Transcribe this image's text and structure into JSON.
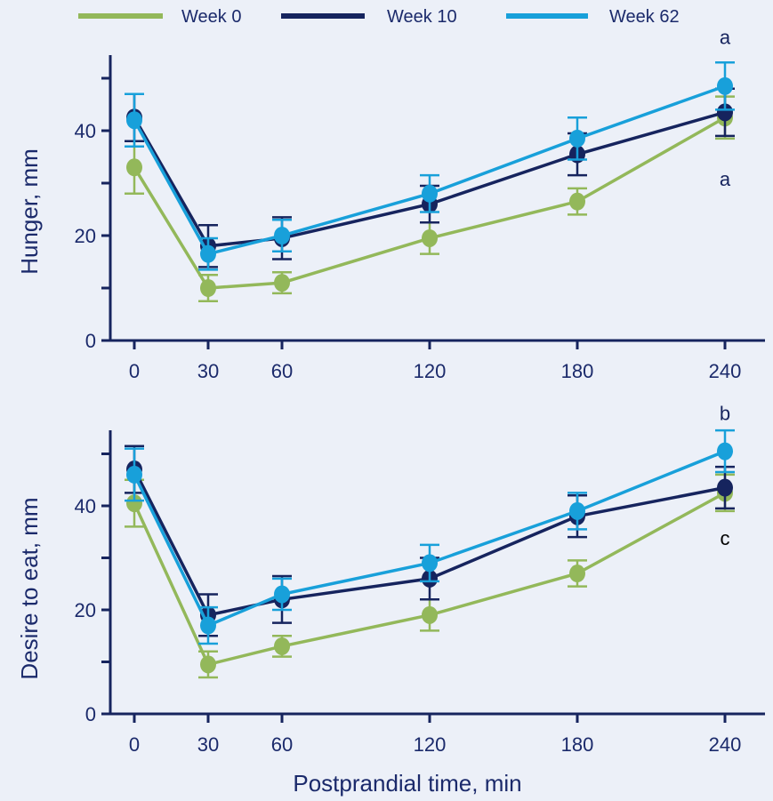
{
  "legend": [
    {
      "name": "Week 0",
      "color": "#93b85a"
    },
    {
      "name": "Week 10",
      "color": "#16245e"
    },
    {
      "name": "Week 62",
      "color": "#18a0da"
    }
  ],
  "xlabel": "Postprandial time, min",
  "chart_data": [
    {
      "type": "line",
      "ylabel": "Hunger, mm",
      "x": [
        0,
        30,
        60,
        120,
        180,
        240
      ],
      "x_ticks": [
        "0",
        "30",
        "60",
        "120",
        "180",
        "240"
      ],
      "y_ticks": [
        "0",
        "20",
        "40"
      ],
      "ylim": [
        0,
        50
      ],
      "series": [
        {
          "name": "Week 0",
          "values": [
            33,
            10,
            11,
            19.5,
            26.5,
            42.5
          ],
          "errors": [
            5,
            2.5,
            2,
            3,
            2.5,
            4
          ]
        },
        {
          "name": "Week 10",
          "values": [
            42.5,
            18,
            19.5,
            26,
            35.5,
            43.5
          ],
          "errors": [
            4.5,
            4,
            4,
            3.5,
            4,
            4.5
          ]
        },
        {
          "name": "Week 62",
          "values": [
            42,
            16.5,
            20,
            28,
            38.5,
            48.5
          ],
          "errors": [
            5,
            3,
            3,
            3.5,
            4,
            4.5
          ]
        }
      ],
      "annotations": [
        {
          "text": "a",
          "x": 240,
          "y": 56.5,
          "color": "#16245e"
        },
        {
          "text": "a",
          "x": 240,
          "y": 29.5,
          "color": "#16245e"
        }
      ],
      "grid": false
    },
    {
      "type": "line",
      "ylabel": "Desire to eat, mm",
      "x": [
        0,
        30,
        60,
        120,
        180,
        240
      ],
      "x_ticks": [
        "0",
        "30",
        "60",
        "120",
        "180",
        "240"
      ],
      "y_ticks": [
        "0",
        "20",
        "40"
      ],
      "ylim": [
        0,
        50
      ],
      "series": [
        {
          "name": "Week 0",
          "values": [
            40.5,
            9.5,
            13,
            19,
            27,
            42.5
          ],
          "errors": [
            4.5,
            2.5,
            2,
            3,
            2.5,
            3.5
          ]
        },
        {
          "name": "Week 10",
          "values": [
            47,
            19,
            22,
            26,
            38,
            43.5
          ],
          "errors": [
            4.5,
            4,
            4.5,
            4,
            4,
            4
          ]
        },
        {
          "name": "Week 62",
          "values": [
            46,
            17,
            23,
            29,
            39,
            50.5
          ],
          "errors": [
            5,
            3.5,
            3,
            3.5,
            3.5,
            4
          ]
        }
      ],
      "annotations": [
        {
          "text": "b",
          "x": 240,
          "y": 56.5,
          "color": "#16245e"
        },
        {
          "text": "c",
          "x": 240,
          "y": 32.5,
          "color": "#000000"
        }
      ],
      "grid": false
    }
  ]
}
